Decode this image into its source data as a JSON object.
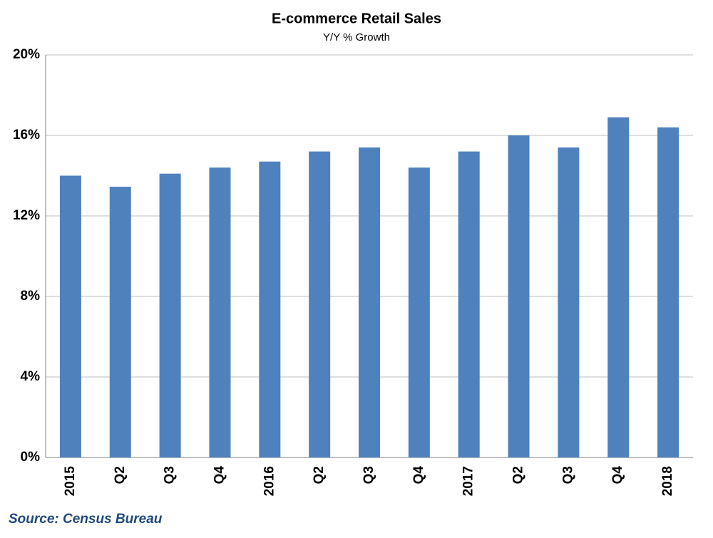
{
  "chart_data": {
    "type": "bar",
    "title": "E-commerce Retail Sales",
    "subtitle": "Y/Y % Growth",
    "categories": [
      "2015",
      "Q2",
      "Q3",
      "Q4",
      "2016",
      "Q2",
      "Q3",
      "Q4",
      "2017",
      "Q2",
      "Q3",
      "Q4",
      "2018"
    ],
    "values": [
      14.0,
      13.45,
      14.1,
      14.4,
      14.7,
      15.2,
      15.4,
      14.4,
      15.2,
      16.0,
      15.4,
      16.9,
      16.4
    ],
    "color": "#4f81bd",
    "ylim": [
      0,
      20
    ],
    "yticks": [
      {
        "value": 0,
        "label": "0%"
      },
      {
        "value": 4,
        "label": "4%"
      },
      {
        "value": 8,
        "label": "8%"
      },
      {
        "value": 12,
        "label": "12%"
      },
      {
        "value": 16,
        "label": "16%"
      },
      {
        "value": 20,
        "label": "20%"
      }
    ],
    "grid": true,
    "source": "Source: Census Bureau"
  }
}
